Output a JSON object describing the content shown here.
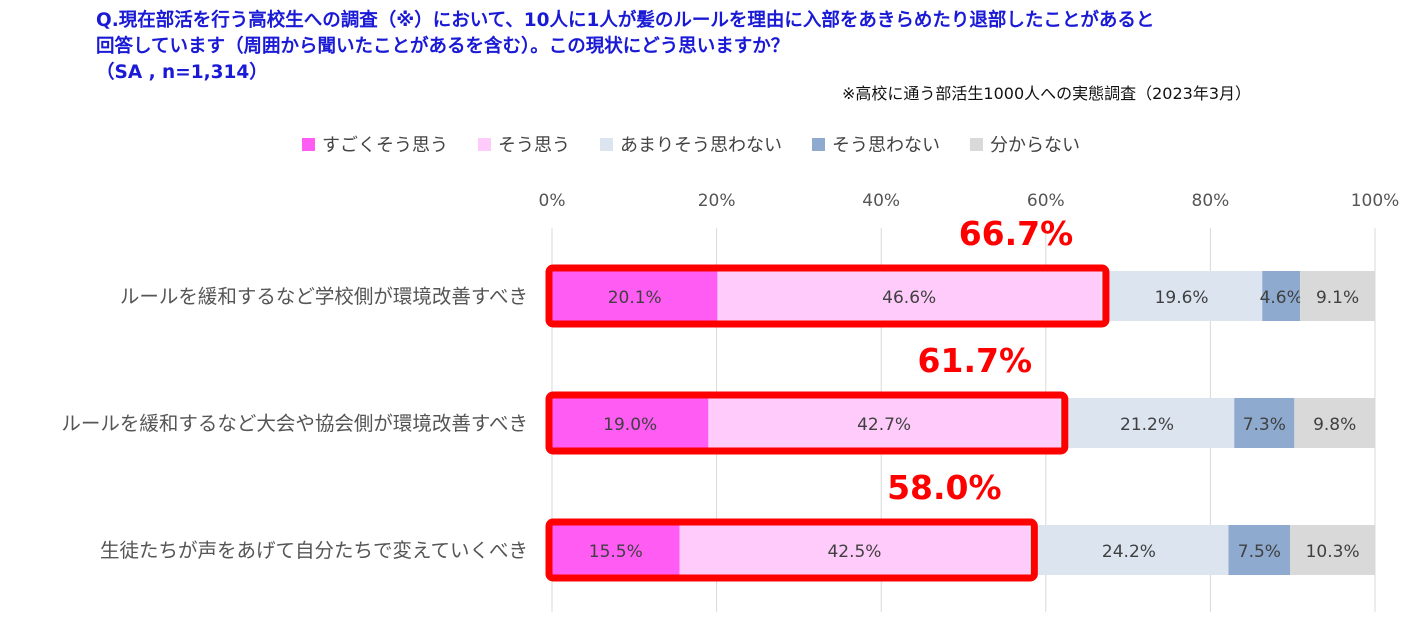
{
  "question": {
    "line1": "Q.現在部活を行う高校生への調査（※）において、10人に1人が髪のルールを理由に入部をあきらめたり退部したことがあると",
    "line2": "回答しています（周囲から聞いたことがあるを含む）。この現状にどう思いますか？",
    "line3": "（SA , n=1,314）"
  },
  "note": "※高校に通う部活生1000人への実態調査（2023年3月）",
  "colors": {
    "question": "#1a1ad6",
    "highlight": "#ff0000",
    "series": [
      "#ff5cf4",
      "#ffcbfb",
      "#dce4f0",
      "#8eaacf",
      "#d9d9d9"
    ]
  },
  "chart_data": {
    "type": "bar",
    "orientation": "horizontal",
    "stacked": true,
    "title": "",
    "xlabel": "",
    "ylabel": "",
    "xlim": [
      0,
      100
    ],
    "x_ticks": [
      "0%",
      "20%",
      "40%",
      "60%",
      "80%",
      "100%"
    ],
    "gridlines": true,
    "legend_position": "top",
    "categories": [
      "ルールを緩和するなど学校側が環境改善すべき",
      "ルールを緩和するなど大会や協会側が環境改善すべき",
      "生徒たちが声をあげて自分たちで変えていくべき"
    ],
    "series": [
      {
        "name": "すごくそう思う",
        "values": [
          20.1,
          19.0,
          15.5
        ],
        "labels": [
          "20.1%",
          "19.0%",
          "15.5%"
        ]
      },
      {
        "name": "そう思う",
        "values": [
          46.6,
          42.7,
          42.5
        ],
        "labels": [
          "46.6%",
          "42.7%",
          "42.5%"
        ]
      },
      {
        "name": "あまりそう思わない",
        "values": [
          19.6,
          21.2,
          24.2
        ],
        "labels": [
          "19.6%",
          "21.2%",
          "24.2%"
        ]
      },
      {
        "name": "そう思わない",
        "values": [
          4.6,
          7.3,
          7.5
        ],
        "labels": [
          "4.6%",
          "7.3%",
          "7.5%"
        ]
      },
      {
        "name": "分からない",
        "values": [
          9.1,
          9.8,
          10.3
        ],
        "labels": [
          "9.1%",
          "9.8%",
          "10.3%"
        ]
      }
    ],
    "annotations": [
      {
        "category_index": 0,
        "text": "66.7%",
        "value": 66.7
      },
      {
        "category_index": 1,
        "text": "61.7%",
        "value": 61.7
      },
      {
        "category_index": 2,
        "text": "58.0%",
        "value": 58.0
      }
    ]
  }
}
